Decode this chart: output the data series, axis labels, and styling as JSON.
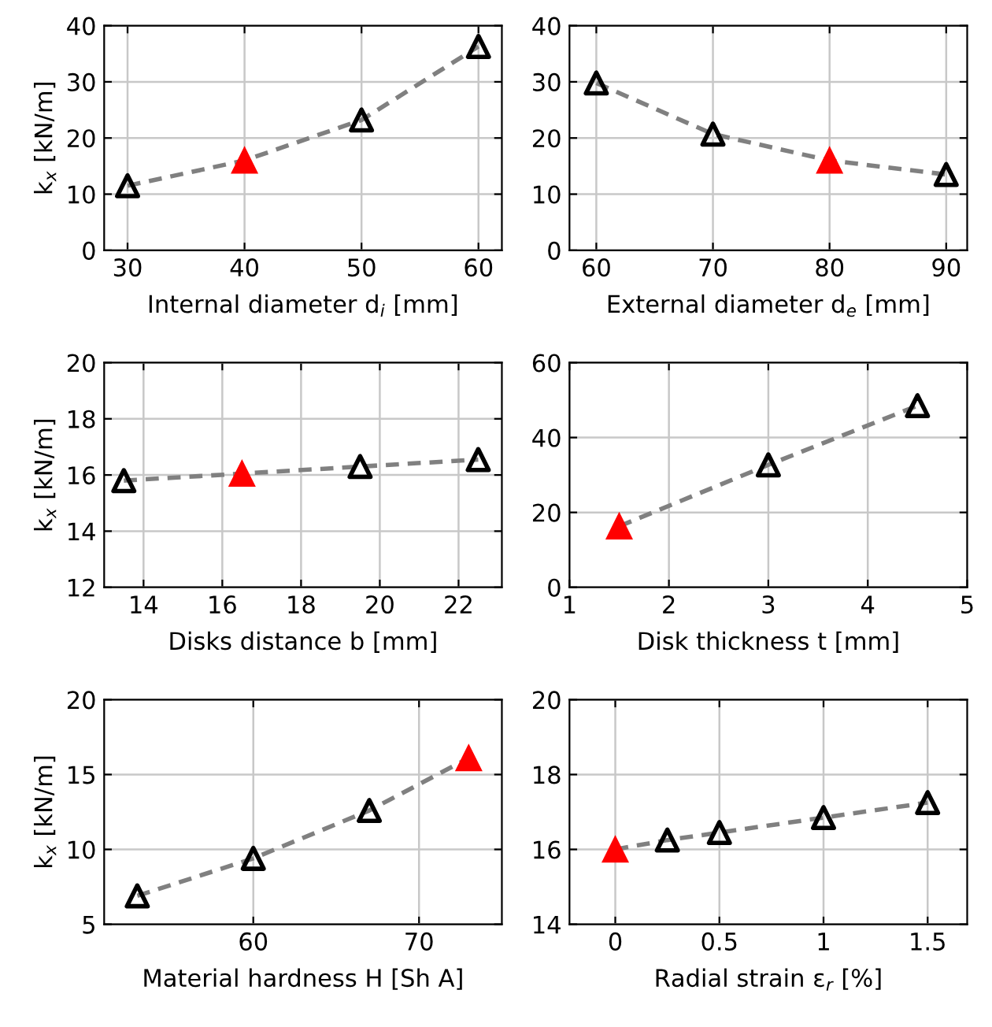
{
  "chart_data": [
    {
      "type": "line",
      "xlabel": "Internal diameter d$_{i}$ [mm]",
      "ylabel": "k$_{x}$ [kN/m]",
      "xlim": [
        28,
        62
      ],
      "xticks": [
        30,
        40,
        50,
        60
      ],
      "ylim": [
        0,
        40
      ],
      "yticks": [
        0,
        10,
        20,
        30,
        40
      ],
      "grid": true,
      "series": [
        {
          "color": "#808080",
          "line_style": "dashed",
          "marker": "none",
          "x": [
            30,
            40,
            50,
            60
          ],
          "values": [
            11.5,
            16,
            23.2,
            36.3
          ]
        },
        {
          "type": "scatter",
          "color": "#000000",
          "marker": "triangle",
          "x": [
            30,
            50,
            60
          ],
          "values": [
            11.5,
            23.2,
            36.3
          ]
        },
        {
          "color": "#ff0000",
          "marker": "triangle",
          "x": [
            40
          ],
          "values": [
            16
          ]
        }
      ]
    },
    {
      "type": "line",
      "xlabel": "External diameter d$_{e}$ [mm]",
      "xlim": [
        57.7,
        91.8
      ],
      "xticks": [
        60,
        70,
        80,
        90
      ],
      "ylim": [
        0,
        40
      ],
      "yticks": [
        0,
        10,
        20,
        30,
        40
      ],
      "grid": true,
      "series": [
        {
          "color": "#808080",
          "line_style": "dashed",
          "marker": "none",
          "x": [
            60,
            70,
            80,
            90
          ],
          "values": [
            29.8,
            20.7,
            16,
            13.5
          ]
        },
        {
          "type": "scatter",
          "color": "#000000",
          "marker": "triangle",
          "x": [
            60,
            70,
            90
          ],
          "values": [
            29.8,
            20.7,
            13.5
          ]
        },
        {
          "color": "#ff0000",
          "marker": "triangle",
          "x": [
            80
          ],
          "values": [
            16
          ]
        }
      ]
    },
    {
      "type": "line",
      "xlabel": "Disks distance b [mm]",
      "ylabel": "k$_{x}$ [kN/m]",
      "xlim": [
        13,
        23.1
      ],
      "xticks": [
        14,
        16,
        18,
        20,
        22
      ],
      "ylim": [
        12,
        20
      ],
      "yticks": [
        12,
        14,
        16,
        18,
        20
      ],
      "grid": true,
      "series": [
        {
          "color": "#808080",
          "line_style": "dashed",
          "marker": "none",
          "x": [
            13.5,
            16.5,
            19.5,
            22.5
          ],
          "values": [
            15.8,
            16.05,
            16.3,
            16.55
          ]
        },
        {
          "type": "scatter",
          "color": "#000000",
          "marker": "triangle",
          "x": [
            13.5,
            19.5,
            22.5
          ],
          "values": [
            15.8,
            16.3,
            16.55
          ]
        },
        {
          "color": "#ff0000",
          "marker": "triangle",
          "x": [
            16.5
          ],
          "values": [
            16.05
          ]
        }
      ]
    },
    {
      "type": "line",
      "xlabel": "Disk thickness t [mm]",
      "xlim": [
        1,
        5
      ],
      "xticks": [
        1,
        2,
        3,
        4,
        5
      ],
      "ylim": [
        0,
        60
      ],
      "yticks": [
        0,
        20,
        40,
        60
      ],
      "grid": true,
      "series": [
        {
          "color": "#808080",
          "line_style": "dashed",
          "marker": "none",
          "x": [
            1.5,
            3,
            4.5
          ],
          "values": [
            16.3,
            32.7,
            48.5
          ]
        },
        {
          "type": "scatter",
          "color": "#000000",
          "marker": "triangle",
          "x": [
            3,
            4.5
          ],
          "values": [
            32.7,
            48.5
          ]
        },
        {
          "color": "#ff0000",
          "marker": "triangle",
          "x": [
            1.5
          ],
          "values": [
            16.3
          ]
        }
      ]
    },
    {
      "type": "line",
      "xlabel": "Material hardness H [Sh A]",
      "ylabel": "k$_{x}$ [kN/m]",
      "xlim": [
        51,
        75
      ],
      "xticks": [
        60,
        70
      ],
      "ylim": [
        5,
        20
      ],
      "yticks": [
        5,
        10,
        15,
        20
      ],
      "grid": true,
      "series": [
        {
          "color": "#808080",
          "line_style": "dashed",
          "marker": "none",
          "x": [
            53,
            60,
            67,
            73
          ],
          "values": [
            6.9,
            9.4,
            12.6,
            16.1
          ]
        },
        {
          "type": "scatter",
          "color": "#000000",
          "marker": "triangle",
          "x": [
            53,
            60,
            67
          ],
          "values": [
            6.9,
            9.4,
            12.6
          ]
        },
        {
          "color": "#ff0000",
          "marker": "triangle",
          "x": [
            73
          ],
          "values": [
            16.1
          ]
        }
      ]
    },
    {
      "type": "line",
      "xlabel": "Radial strain ε$_{r}$ [%]",
      "xlim": [
        -0.22,
        1.69
      ],
      "xticks": [
        0,
        0.5,
        1,
        1.5
      ],
      "ylim": [
        14,
        20
      ],
      "yticks": [
        14,
        16,
        18,
        20
      ],
      "grid": true,
      "series": [
        {
          "color": "#808080",
          "line_style": "dashed",
          "marker": "none",
          "x": [
            0,
            0.25,
            0.5,
            1,
            1.5
          ],
          "values": [
            16.0,
            16.25,
            16.45,
            16.85,
            17.25
          ]
        },
        {
          "type": "scatter",
          "color": "#000000",
          "marker": "triangle",
          "x": [
            0.25,
            0.5,
            1,
            1.5
          ],
          "values": [
            16.25,
            16.45,
            16.85,
            17.25
          ]
        },
        {
          "color": "#ff0000",
          "marker": "triangle",
          "x": [
            0
          ],
          "values": [
            16.0
          ]
        }
      ]
    }
  ]
}
